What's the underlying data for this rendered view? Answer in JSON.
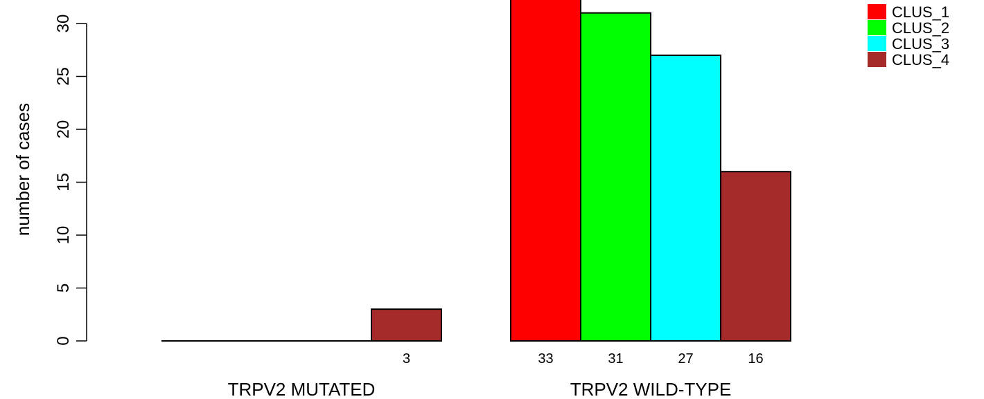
{
  "chart_data": {
    "type": "bar",
    "ylabel": "number of cases",
    "ylim": [
      0,
      33
    ],
    "yticks": [
      0,
      5,
      10,
      15,
      20,
      25,
      30
    ],
    "groups": [
      {
        "name": "TRPV2 MUTATED",
        "values": [
          0,
          0,
          0,
          3
        ],
        "labels": [
          "",
          "",
          "",
          "3"
        ]
      },
      {
        "name": "TRPV2 WILD-TYPE",
        "values": [
          33,
          31,
          27,
          16
        ],
        "labels": [
          "33",
          "31",
          "27",
          "16"
        ]
      }
    ],
    "series": [
      {
        "name": "CLUS_1",
        "color": "#ff0000"
      },
      {
        "name": "CLUS_2",
        "color": "#00ff00"
      },
      {
        "name": "CLUS_3",
        "color": "#00ffff"
      },
      {
        "name": "CLUS_4",
        "color": "#a52a2a"
      }
    ],
    "legend_position": "top-right",
    "grid": false
  }
}
